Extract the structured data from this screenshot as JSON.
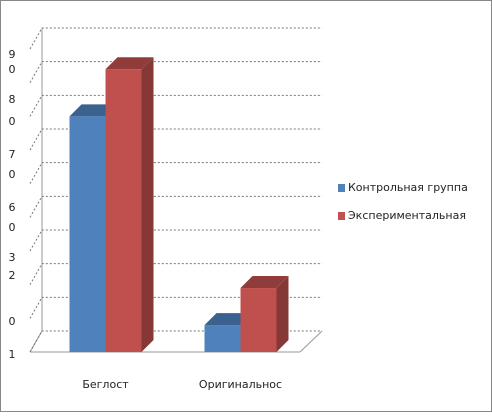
{
  "chart_data": {
    "type": "bar3d",
    "categories": [
      "Беглост",
      "Оригинальнос"
    ],
    "series": [
      {
        "name": "Контрольная группа",
        "color": "#4f81bd",
        "values": [
          70,
          8
        ]
      },
      {
        "name": "Экспериментальная",
        "color": "#c0504d",
        "values": [
          84,
          19
        ]
      }
    ],
    "ylim": [
      0,
      90
    ],
    "yticks": [
      0,
      10,
      20,
      30,
      40,
      50,
      60,
      70,
      80,
      90
    ],
    "y_axis_text": [
      "9",
      "0",
      "8",
      "0",
      "7",
      "0",
      "6",
      "0",
      "3",
      "2",
      "0",
      "1"
    ],
    "grid": true,
    "legend": "right"
  }
}
